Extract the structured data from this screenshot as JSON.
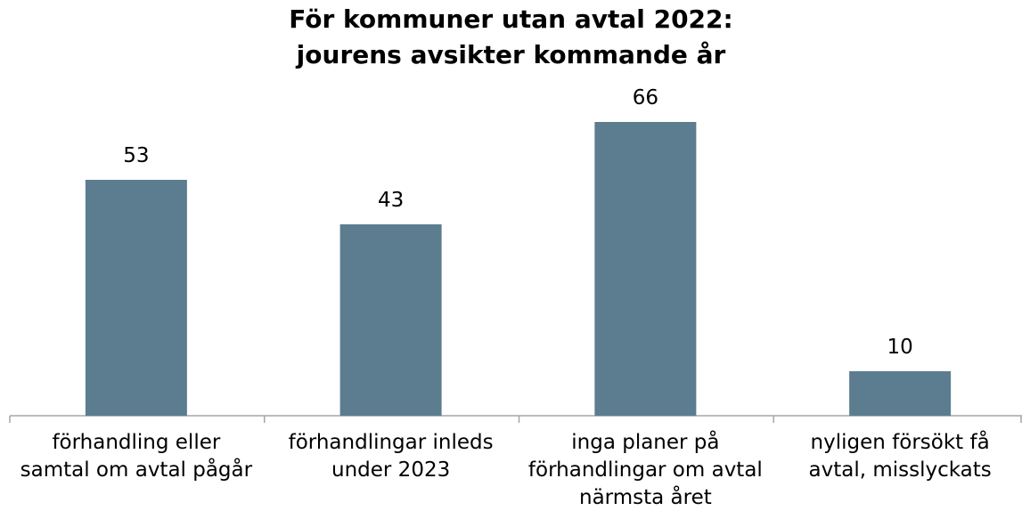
{
  "chart_data": {
    "type": "bar",
    "title": "För kommuner utan avtal 2022:\njourens avsikter kommande år",
    "categories": [
      "förhandling eller samtal om avtal pågår",
      "förhandlingar inleds under 2023",
      "inga planer på förhandlingar om avtal närmsta året",
      "nyligen försökt få avtal, misslyckats"
    ],
    "values": [
      53,
      43,
      66,
      10
    ],
    "color": "#5b7d8f",
    "ylim": [
      0,
      90
    ]
  }
}
